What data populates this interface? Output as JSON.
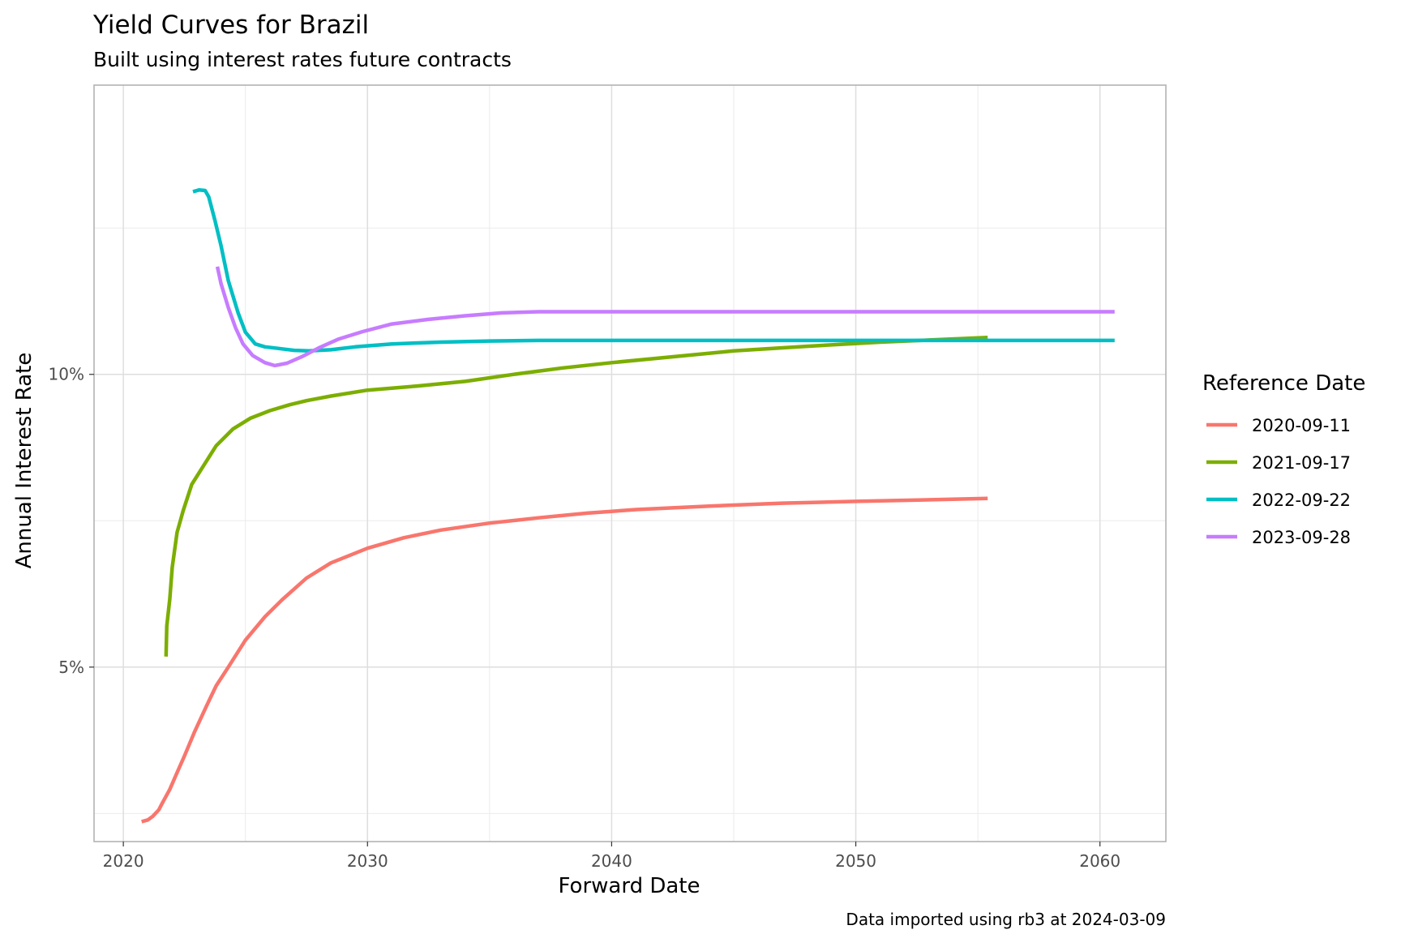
{
  "chart_data": {
    "type": "line",
    "title": "Yield Curves for Brazil",
    "subtitle": "Built using interest rates future contracts",
    "xlabel": "Forward Date",
    "ylabel": "Annual Interest Rate",
    "caption": "Data imported using rb3 at 2024-03-09",
    "xlim": [
      2018.8,
      2062.7
    ],
    "ylim": [
      0.0202,
      0.1494
    ],
    "x_ticks": [
      2020,
      2030,
      2040,
      2050,
      2060
    ],
    "x_tick_labels": [
      "2020",
      "2030",
      "2040",
      "2050",
      "2060"
    ],
    "y_ticks": [
      0.05,
      0.1
    ],
    "y_tick_labels": [
      "5%",
      "10%"
    ],
    "y_minor_gridlines": [
      0.025,
      0.075,
      0.125
    ],
    "x_minor_gridlines": [
      2025,
      2035,
      2045,
      2055
    ],
    "grid": true,
    "legend": {
      "title": "Reference Date",
      "position": "right"
    },
    "series": [
      {
        "name": "2020-09-11",
        "color": "#F8766D",
        "points": [
          [
            2020.75,
            0.0236
          ],
          [
            2021.0,
            0.0239
          ],
          [
            2021.2,
            0.0245
          ],
          [
            2021.45,
            0.0256
          ],
          [
            2021.6,
            0.0268
          ],
          [
            2021.9,
            0.0291
          ],
          [
            2022.15,
            0.0315
          ],
          [
            2022.5,
            0.0348
          ],
          [
            2022.9,
            0.0388
          ],
          [
            2023.4,
            0.0433
          ],
          [
            2023.8,
            0.0468
          ],
          [
            2024.3,
            0.05
          ],
          [
            2025.0,
            0.0546
          ],
          [
            2025.8,
            0.0586
          ],
          [
            2026.5,
            0.0615
          ],
          [
            2027.5,
            0.0652
          ],
          [
            2028.5,
            0.0678
          ],
          [
            2030.0,
            0.0703
          ],
          [
            2031.5,
            0.0721
          ],
          [
            2033.0,
            0.0734
          ],
          [
            2035.0,
            0.0746
          ],
          [
            2037.0,
            0.0755
          ],
          [
            2039.0,
            0.0763
          ],
          [
            2041.0,
            0.0769
          ],
          [
            2044.0,
            0.0775
          ],
          [
            2047.0,
            0.078
          ],
          [
            2050.0,
            0.0783
          ],
          [
            2055.4,
            0.0788
          ]
        ]
      },
      {
        "name": "2021-09-17",
        "color": "#7CAE00",
        "points": [
          [
            2021.75,
            0.0518
          ],
          [
            2021.78,
            0.057
          ],
          [
            2021.9,
            0.0616
          ],
          [
            2022.0,
            0.067
          ],
          [
            2022.2,
            0.073
          ],
          [
            2022.45,
            0.0767
          ],
          [
            2022.8,
            0.0812
          ],
          [
            2023.3,
            0.0845
          ],
          [
            2023.8,
            0.0878
          ],
          [
            2024.5,
            0.0907
          ],
          [
            2025.2,
            0.0925
          ],
          [
            2026.0,
            0.0938
          ],
          [
            2026.8,
            0.0948
          ],
          [
            2027.5,
            0.0955
          ],
          [
            2028.5,
            0.0963
          ],
          [
            2030.0,
            0.0973
          ],
          [
            2032.0,
            0.098
          ],
          [
            2034.0,
            0.0988
          ],
          [
            2036.0,
            0.1
          ],
          [
            2038.0,
            0.1011
          ],
          [
            2040.0,
            0.102
          ],
          [
            2042.0,
            0.1028
          ],
          [
            2045.0,
            0.104
          ],
          [
            2048.0,
            0.1048
          ],
          [
            2051.0,
            0.1055
          ],
          [
            2055.4,
            0.1063
          ]
        ]
      },
      {
        "name": "2022-09-22",
        "color": "#00BFC4",
        "points": [
          [
            2022.85,
            0.1312
          ],
          [
            2023.1,
            0.1315
          ],
          [
            2023.35,
            0.1314
          ],
          [
            2023.5,
            0.1303
          ],
          [
            2023.75,
            0.1263
          ],
          [
            2024.0,
            0.122
          ],
          [
            2024.3,
            0.116
          ],
          [
            2024.7,
            0.1105
          ],
          [
            2025.0,
            0.1072
          ],
          [
            2025.4,
            0.1052
          ],
          [
            2025.8,
            0.1047
          ],
          [
            2026.2,
            0.1045
          ],
          [
            2026.6,
            0.1043
          ],
          [
            2027.0,
            0.1041
          ],
          [
            2027.6,
            0.104
          ],
          [
            2028.5,
            0.1042
          ],
          [
            2029.5,
            0.1047
          ],
          [
            2031.0,
            0.1052
          ],
          [
            2033.0,
            0.1055
          ],
          [
            2035.0,
            0.1057
          ],
          [
            2037.0,
            0.1058
          ],
          [
            2045.0,
            0.1058
          ],
          [
            2060.6,
            0.1058
          ]
        ]
      },
      {
        "name": "2023-09-28",
        "color": "#C77CFF",
        "points": [
          [
            2023.85,
            0.1184
          ],
          [
            2024.0,
            0.1155
          ],
          [
            2024.3,
            0.1114
          ],
          [
            2024.6,
            0.1079
          ],
          [
            2024.9,
            0.1052
          ],
          [
            2025.3,
            0.1032
          ],
          [
            2025.8,
            0.102
          ],
          [
            2026.2,
            0.1015
          ],
          [
            2026.7,
            0.1019
          ],
          [
            2027.3,
            0.103
          ],
          [
            2028.0,
            0.1045
          ],
          [
            2028.8,
            0.106
          ],
          [
            2029.8,
            0.1073
          ],
          [
            2031.0,
            0.1086
          ],
          [
            2032.5,
            0.1094
          ],
          [
            2034.0,
            0.11
          ],
          [
            2035.5,
            0.1105
          ],
          [
            2037.0,
            0.1107
          ],
          [
            2045.0,
            0.1107
          ],
          [
            2060.6,
            0.1107
          ]
        ]
      }
    ]
  }
}
